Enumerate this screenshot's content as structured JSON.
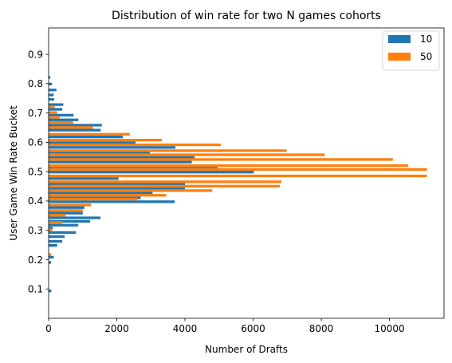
{
  "chart_data": {
    "type": "bar",
    "orientation": "horizontal",
    "title": "Distribution of win rate for two N games cohorts",
    "xlabel": "Number of Drafts",
    "ylabel": "User Game Win Rate Bucket",
    "xlim": [
      0,
      11600
    ],
    "ylim": [
      0,
      0.99
    ],
    "x_ticks": [
      0,
      2000,
      4000,
      6000,
      8000,
      10000
    ],
    "y_ticks": [
      0.1,
      0.2,
      0.3,
      0.4,
      0.5,
      0.6,
      0.7,
      0.8,
      0.9
    ],
    "x_tick_labels": [
      "0",
      "2000",
      "4000",
      "6000",
      "8000",
      "10000"
    ],
    "y_tick_labels": [
      "0.1",
      "0.2",
      "0.3",
      "0.4",
      "0.5",
      "0.6",
      "0.7",
      "0.8",
      "0.9"
    ],
    "grid": false,
    "legend_position": "top-right",
    "series": [
      {
        "name": "10",
        "color": "#1f77b4",
        "points": [
          [
            0.098,
            80
          ],
          [
            0.195,
            70
          ],
          [
            0.213,
            150
          ],
          [
            0.253,
            250
          ],
          [
            0.267,
            400
          ],
          [
            0.283,
            470
          ],
          [
            0.297,
            800
          ],
          [
            0.312,
            120
          ],
          [
            0.322,
            870
          ],
          [
            0.335,
            1220
          ],
          [
            0.347,
            1520
          ],
          [
            0.363,
            1000
          ],
          [
            0.382,
            1050
          ],
          [
            0.402,
            3700
          ],
          [
            0.415,
            2700
          ],
          [
            0.431,
            3050
          ],
          [
            0.446,
            4000
          ],
          [
            0.461,
            4000
          ],
          [
            0.481,
            2050
          ],
          [
            0.503,
            6020
          ],
          [
            0.516,
            4960
          ],
          [
            0.537,
            4200
          ],
          [
            0.553,
            4280
          ],
          [
            0.567,
            2970
          ],
          [
            0.587,
            3720
          ],
          [
            0.603,
            2550
          ],
          [
            0.623,
            2180
          ],
          [
            0.646,
            1530
          ],
          [
            0.663,
            1560
          ],
          [
            0.681,
            870
          ],
          [
            0.697,
            730
          ],
          [
            0.717,
            400
          ],
          [
            0.733,
            430
          ],
          [
            0.751,
            160
          ],
          [
            0.766,
            150
          ],
          [
            0.783,
            230
          ],
          [
            0.803,
            100
          ],
          [
            0.826,
            50
          ]
        ]
      },
      {
        "name": "50",
        "color": "#ff7f0e",
        "points": [
          [
            0.213,
            70
          ],
          [
            0.297,
            100
          ],
          [
            0.322,
            400
          ],
          [
            0.347,
            500
          ],
          [
            0.363,
            1000
          ],
          [
            0.382,
            1250
          ],
          [
            0.402,
            2600
          ],
          [
            0.415,
            3450
          ],
          [
            0.431,
            4800
          ],
          [
            0.446,
            6780
          ],
          [
            0.461,
            6830
          ],
          [
            0.481,
            11100
          ],
          [
            0.503,
            11100
          ],
          [
            0.516,
            10550
          ],
          [
            0.537,
            10100
          ],
          [
            0.553,
            8100
          ],
          [
            0.567,
            6980
          ],
          [
            0.587,
            5050
          ],
          [
            0.603,
            3320
          ],
          [
            0.623,
            2380
          ],
          [
            0.646,
            1300
          ],
          [
            0.663,
            720
          ],
          [
            0.681,
            330
          ],
          [
            0.697,
            250
          ],
          [
            0.717,
            180
          ]
        ]
      }
    ]
  }
}
